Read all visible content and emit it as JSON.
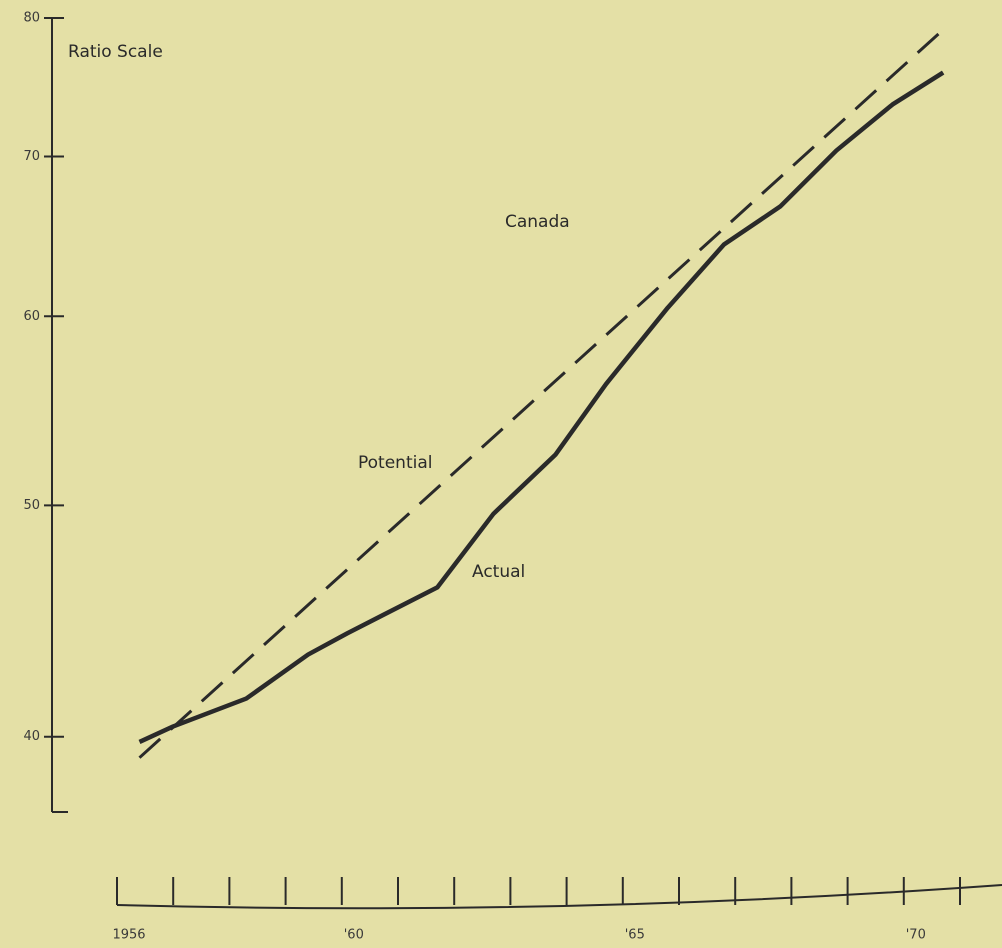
{
  "chart_data": {
    "type": "line",
    "title": "Canada",
    "y_label": "Ratio Scale",
    "yscale": "log",
    "ylim": [
      37.2,
      80
    ],
    "yticks": [
      40,
      50,
      60,
      70,
      80
    ],
    "xlim": [
      1956,
      1971
    ],
    "xticks": [
      {
        "value": 1956,
        "label": "1956"
      },
      {
        "value": 1957,
        "label": null
      },
      {
        "value": 1958,
        "label": null
      },
      {
        "value": 1959,
        "label": null
      },
      {
        "value": 1960,
        "label": "'60"
      },
      {
        "value": 1961,
        "label": null
      },
      {
        "value": 1962,
        "label": null
      },
      {
        "value": 1963,
        "label": null
      },
      {
        "value": 1964,
        "label": null
      },
      {
        "value": 1965,
        "label": "'65"
      },
      {
        "value": 1966,
        "label": null
      },
      {
        "value": 1967,
        "label": null
      },
      {
        "value": 1968,
        "label": null
      },
      {
        "value": 1969,
        "label": null
      },
      {
        "value": 1970,
        "label": "'70"
      },
      {
        "value": 1971,
        "label": null
      }
    ],
    "series": [
      {
        "name": "Actual",
        "color": "#2a2a2a",
        "dash": false,
        "x": [
          1956.4,
          1957.0,
          1958.3,
          1959.4,
          1960.1,
          1961.7,
          1962.7,
          1963.8,
          1964.7,
          1965.8,
          1966.8,
          1967.8,
          1968.8,
          1969.8,
          1970.7
        ],
        "values": [
          39.8,
          40.4,
          41.5,
          43.3,
          44.2,
          46.2,
          49.6,
          52.5,
          56.2,
          60.5,
          64.3,
          66.7,
          70.4,
          73.6,
          75.9
        ]
      },
      {
        "name": "Potential",
        "color": "#2a2a2a",
        "dash": true,
        "x": [
          1956.4,
          1970.7
        ],
        "values": [
          39.2,
          79.1
        ]
      }
    ]
  }
}
